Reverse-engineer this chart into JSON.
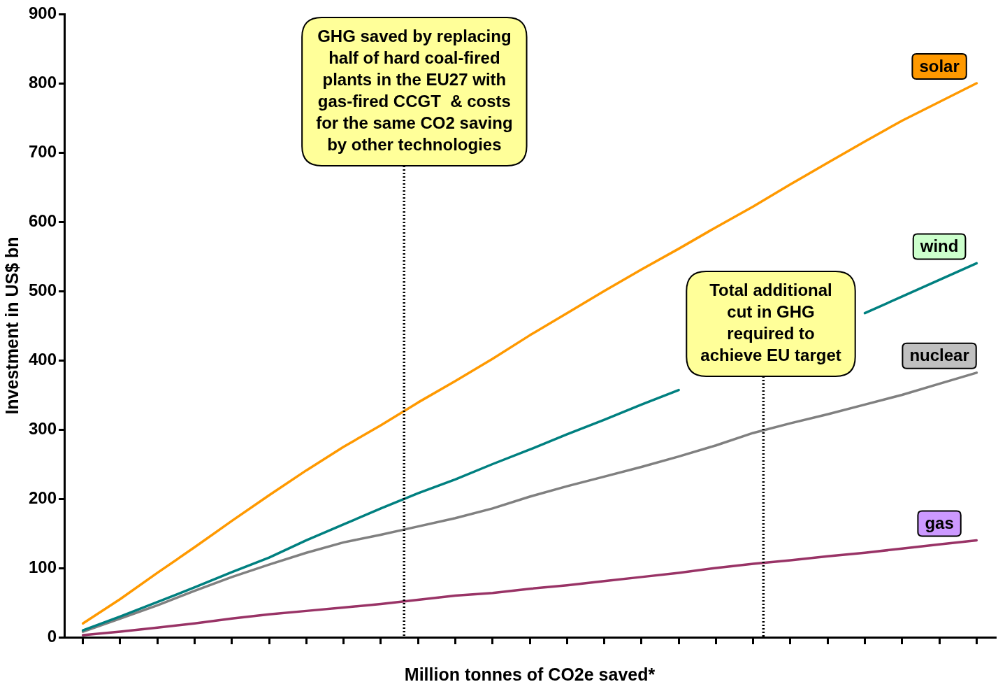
{
  "chart_data": {
    "type": "line",
    "xlabel": "Million tonnes of CO2e saved*",
    "ylabel": "Investment in US$ bn",
    "categories": [
      null,
      null,
      null,
      null,
      null,
      null,
      null,
      null,
      null,
      null,
      null,
      null,
      null,
      null,
      null,
      null,
      null,
      null,
      null,
      null,
      null,
      null,
      null,
      null,
      null
    ],
    "ylim": [
      0,
      900
    ],
    "yticks": [
      0,
      100,
      200,
      300,
      400,
      500,
      600,
      700,
      800,
      900
    ],
    "grid": false,
    "legend": false,
    "marker": "none",
    "line_style": "solid",
    "tick_labels": "y",
    "series": [
      {
        "name": "solar",
        "color": "#ff9900",
        "values": [
          20,
          55,
          93,
          130,
          168,
          205,
          241,
          275,
          306,
          339,
          370,
          402,
          436,
          468,
          500,
          531,
          561,
          592,
          622,
          654,
          685,
          716,
          746,
          773,
          800
        ]
      },
      {
        "name": "wind",
        "color": "#008080",
        "values": [
          10,
          30,
          51,
          72,
          94,
          115,
          140,
          163,
          186,
          208,
          228,
          250,
          271,
          293,
          314,
          336,
          357,
          null,
          null,
          null,
          null,
          468,
          492,
          516,
          540
        ]
      },
      {
        "name": "nuclear",
        "color": "#808080",
        "values": [
          8,
          27,
          46,
          67,
          87,
          105,
          122,
          137,
          148,
          160,
          172,
          186,
          203,
          218,
          232,
          246,
          261,
          277,
          295,
          309,
          322,
          336,
          350,
          366,
          382
        ]
      },
      {
        "name": "gas",
        "color": "#993366",
        "values": [
          3,
          8,
          14,
          20,
          27,
          33,
          38,
          43,
          48,
          54,
          60,
          64,
          70,
          75,
          81,
          87,
          93,
          100,
          106,
          111,
          117,
          122,
          128,
          134,
          140
        ]
      }
    ],
    "annotations": [
      "GHG saved by replacing\nhalf of hard coal-fired\nplants in the EU27 with\ngas-fired CCGT  & costs\nfor the same CO2 saving\nby other technologies",
      "Total additional\ncut in GHG\nrequired to\nachieve EU target"
    ]
  }
}
